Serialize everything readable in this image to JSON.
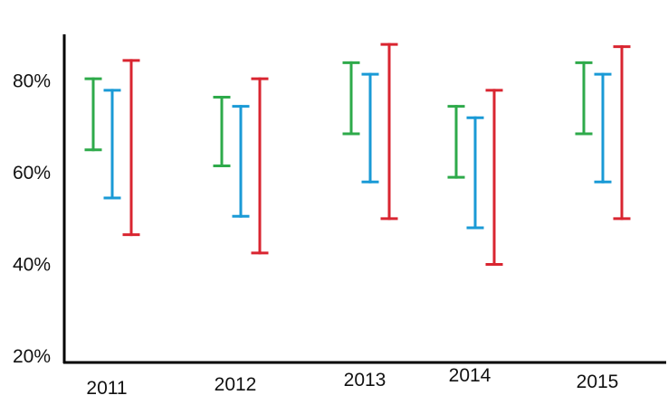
{
  "chart_data": {
    "type": "errorbar",
    "categories": [
      "2011",
      "2012",
      "2013",
      "2014",
      "2015"
    ],
    "y_tick_labels": [
      "80%",
      "60%",
      "40%",
      "20%"
    ],
    "y_ticks": [
      80,
      60,
      40,
      20
    ],
    "ylim": [
      19,
      90
    ],
    "grid": false,
    "legend": "none",
    "series": [
      {
        "color": "#2eaa4a",
        "low": [
          65,
          61.5,
          68.5,
          59,
          68.5
        ],
        "high": [
          80.5,
          76.5,
          84,
          74.5,
          84
        ]
      },
      {
        "color": "#1a9ad6",
        "low": [
          54.5,
          50.5,
          58,
          48,
          58
        ],
        "high": [
          78,
          74.5,
          81.5,
          72,
          81.5
        ]
      },
      {
        "color": "#d92530",
        "low": [
          46.5,
          42.5,
          50,
          40,
          50
        ],
        "high": [
          84.5,
          80.5,
          88,
          78,
          87.5
        ]
      }
    ]
  }
}
